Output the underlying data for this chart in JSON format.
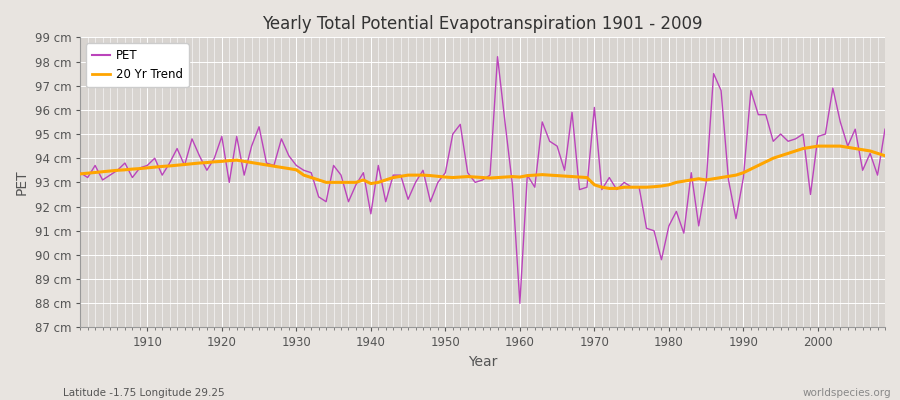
{
  "title": "Yearly Total Potential Evapotranspiration 1901 - 2009",
  "xlabel": "Year",
  "ylabel": "PET",
  "subtitle": "Latitude -1.75 Longitude 29.25",
  "watermark": "worldspecies.org",
  "fig_bg_color": "#e8e4e0",
  "plot_bg_color": "#d8d4d0",
  "grid_color": "#ffffff",
  "pet_color": "#bb44bb",
  "trend_color": "#ffa500",
  "ylim": [
    87,
    99
  ],
  "yticks": [
    87,
    88,
    89,
    90,
    91,
    92,
    93,
    94,
    95,
    96,
    97,
    98,
    99
  ],
  "xlim": [
    1901,
    2009
  ],
  "xticks": [
    1910,
    1920,
    1930,
    1940,
    1950,
    1960,
    1970,
    1980,
    1990,
    2000
  ],
  "years": [
    1901,
    1902,
    1903,
    1904,
    1905,
    1906,
    1907,
    1908,
    1909,
    1910,
    1911,
    1912,
    1913,
    1914,
    1915,
    1916,
    1917,
    1918,
    1919,
    1920,
    1921,
    1922,
    1923,
    1924,
    1925,
    1926,
    1927,
    1928,
    1929,
    1930,
    1931,
    1932,
    1933,
    1934,
    1935,
    1936,
    1937,
    1938,
    1939,
    1940,
    1941,
    1942,
    1943,
    1944,
    1945,
    1946,
    1947,
    1948,
    1949,
    1950,
    1951,
    1952,
    1953,
    1954,
    1955,
    1956,
    1957,
    1958,
    1959,
    1960,
    1961,
    1962,
    1963,
    1964,
    1965,
    1966,
    1967,
    1968,
    1969,
    1970,
    1971,
    1972,
    1973,
    1974,
    1975,
    1976,
    1977,
    1978,
    1979,
    1980,
    1981,
    1982,
    1983,
    1984,
    1985,
    1986,
    1987,
    1988,
    1989,
    1990,
    1991,
    1992,
    1993,
    1994,
    1995,
    1996,
    1997,
    1998,
    1999,
    2000,
    2001,
    2002,
    2003,
    2004,
    2005,
    2006,
    2007,
    2008,
    2009
  ],
  "pet": [
    93.4,
    93.2,
    93.7,
    93.1,
    93.3,
    93.5,
    93.8,
    93.2,
    93.6,
    93.7,
    94.0,
    93.3,
    93.8,
    94.4,
    93.7,
    94.8,
    94.1,
    93.5,
    94.0,
    94.9,
    93.0,
    94.9,
    93.3,
    94.5,
    95.3,
    93.8,
    93.7,
    94.8,
    94.1,
    93.7,
    93.5,
    93.4,
    92.4,
    92.2,
    93.7,
    93.3,
    92.2,
    92.9,
    93.4,
    91.7,
    93.7,
    92.2,
    93.3,
    93.3,
    92.3,
    93.0,
    93.5,
    92.2,
    93.0,
    93.4,
    95.0,
    95.4,
    93.4,
    93.0,
    93.1,
    93.3,
    98.2,
    95.5,
    92.9,
    88.0,
    93.3,
    92.8,
    95.5,
    94.7,
    94.5,
    93.5,
    95.9,
    92.7,
    92.8,
    96.1,
    92.7,
    93.2,
    92.7,
    93.0,
    92.8,
    92.8,
    91.1,
    91.0,
    89.8,
    91.2,
    91.8,
    90.9,
    93.4,
    91.2,
    93.0,
    97.5,
    96.8,
    93.1,
    91.5,
    93.2,
    96.8,
    95.8,
    95.8,
    94.7,
    95.0,
    94.7,
    94.8,
    95.0,
    92.5,
    94.9,
    95.0,
    96.9,
    95.5,
    94.5,
    95.2,
    93.5,
    94.2,
    93.3,
    95.2
  ],
  "trend": [
    93.35,
    93.38,
    93.41,
    93.44,
    93.47,
    93.5,
    93.52,
    93.55,
    93.57,
    93.6,
    93.63,
    93.66,
    93.68,
    93.71,
    93.74,
    93.77,
    93.8,
    93.82,
    93.85,
    93.87,
    93.9,
    93.92,
    93.87,
    93.82,
    93.77,
    93.72,
    93.67,
    93.62,
    93.57,
    93.52,
    93.3,
    93.2,
    93.1,
    93.0,
    93.0,
    93.0,
    93.0,
    93.0,
    93.1,
    92.95,
    93.0,
    93.1,
    93.2,
    93.25,
    93.3,
    93.3,
    93.3,
    93.28,
    93.25,
    93.22,
    93.2,
    93.22,
    93.24,
    93.22,
    93.2,
    93.18,
    93.2,
    93.22,
    93.24,
    93.22,
    93.28,
    93.3,
    93.32,
    93.3,
    93.28,
    93.26,
    93.24,
    93.22,
    93.2,
    92.9,
    92.8,
    92.75,
    92.75,
    92.8,
    92.8,
    92.8,
    92.8,
    92.82,
    92.85,
    92.9,
    93.0,
    93.05,
    93.1,
    93.15,
    93.1,
    93.15,
    93.2,
    93.25,
    93.3,
    93.4,
    93.55,
    93.7,
    93.85,
    94.0,
    94.1,
    94.2,
    94.3,
    94.4,
    94.45,
    94.5,
    94.5,
    94.5,
    94.5,
    94.45,
    94.4,
    94.35,
    94.3,
    94.2,
    94.1
  ]
}
